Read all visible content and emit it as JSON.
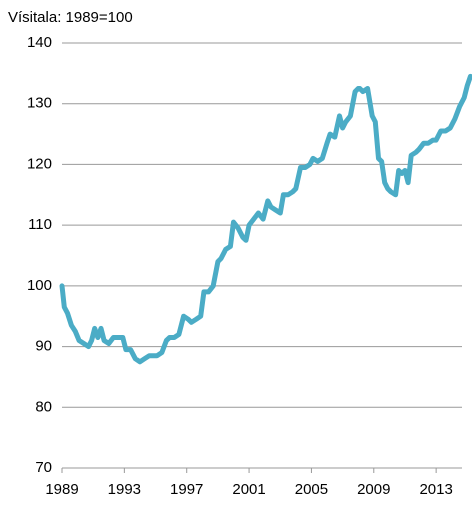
{
  "chart_data": {
    "type": "line",
    "title": "Vísitala: 1989=100",
    "x": [
      1989.0,
      1989.15,
      1989.35,
      1989.6,
      1989.85,
      1990.1,
      1990.4,
      1990.7,
      1990.9,
      1991.1,
      1991.3,
      1991.5,
      1991.7,
      1992.0,
      1992.3,
      1992.6,
      1992.9,
      1993.1,
      1993.4,
      1993.7,
      1994.0,
      1994.3,
      1994.6,
      1994.9,
      1995.1,
      1995.4,
      1995.7,
      1995.9,
      1996.2,
      1996.5,
      1996.8,
      1997.1,
      1997.3,
      1997.6,
      1997.9,
      1998.1,
      1998.4,
      1998.7,
      1999.0,
      1999.2,
      1999.5,
      1999.8,
      2000.0,
      2000.3,
      2000.6,
      2000.8,
      2001.0,
      2001.3,
      2001.6,
      2001.9,
      2002.2,
      2002.4,
      2002.7,
      2003.0,
      2003.2,
      2003.5,
      2003.8,
      2004.0,
      2004.3,
      2004.6,
      2004.9,
      2005.1,
      2005.4,
      2005.7,
      2006.0,
      2006.2,
      2006.5,
      2006.8,
      2007.0,
      2007.2,
      2007.5,
      2007.8,
      2008.0,
      2008.1,
      2008.3,
      2008.6,
      2008.9,
      2009.1,
      2009.3,
      2009.5,
      2009.7,
      2009.9,
      2010.1,
      2010.4,
      2010.6,
      2010.8,
      2011.0,
      2011.2,
      2011.4,
      2011.7,
      2011.9,
      2012.2,
      2012.5,
      2012.8,
      2013.0,
      2013.3,
      2013.6,
      2013.9,
      2014.2,
      2014.5,
      2014.8,
      2015.0,
      2015.2
    ],
    "series": [
      {
        "name": "Vísitala",
        "color": "#4bacc6",
        "values": [
          100,
          96.5,
          95.5,
          93.5,
          92.5,
          91,
          90.5,
          90,
          91,
          93,
          91.5,
          93,
          91,
          90.5,
          91.5,
          91.5,
          91.5,
          89.5,
          89.5,
          88,
          87.5,
          88,
          88.5,
          88.5,
          88.5,
          89,
          91,
          91.5,
          91.5,
          92,
          95,
          94.5,
          94,
          94.5,
          95,
          99,
          99,
          100,
          104,
          104.5,
          106,
          106.5,
          110.5,
          109.5,
          108,
          107.5,
          110,
          111,
          112,
          111,
          114,
          113,
          112.5,
          112,
          115,
          115,
          115.5,
          116,
          119.5,
          119.5,
          120,
          121,
          120.5,
          121,
          123.5,
          125,
          124.5,
          128,
          126,
          127,
          128,
          132,
          132.5,
          132.5,
          132,
          132.5,
          128,
          127,
          121,
          120.5,
          117,
          116,
          115.5,
          115,
          119,
          118.5,
          119,
          117,
          121.5,
          122,
          122.5,
          123.5,
          123.5,
          124,
          124,
          125.5,
          125.5,
          126,
          127.5,
          129.5,
          131,
          133,
          134.5
        ]
      }
    ],
    "xlim": [
      1989,
      2015.3
    ],
    "xticks": [
      1989,
      1993,
      1997,
      2001,
      2005,
      2009,
      2013
    ],
    "ylim": [
      70,
      140
    ],
    "yticks": [
      70,
      80,
      90,
      100,
      110,
      120,
      130,
      140
    ],
    "grid": true
  }
}
